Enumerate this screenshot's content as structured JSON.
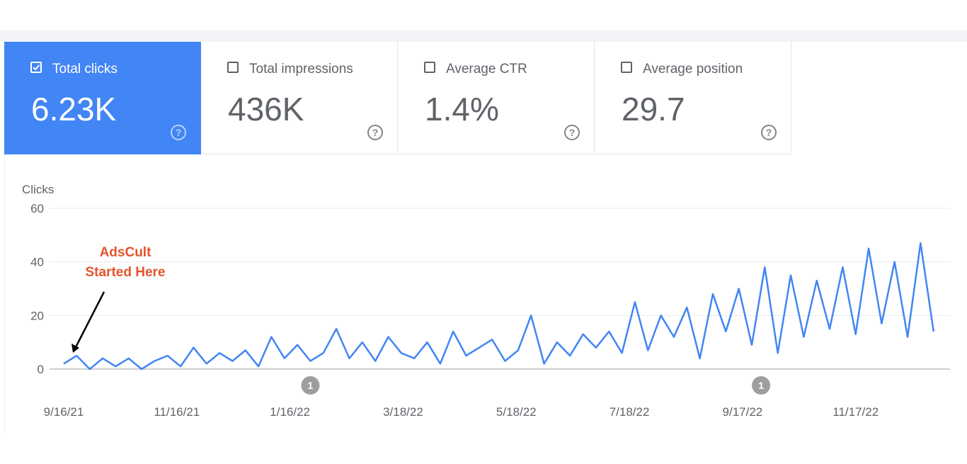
{
  "metrics": [
    {
      "label": "Total clicks",
      "value": "6.23K",
      "checked": true
    },
    {
      "label": "Total impressions",
      "value": "436K",
      "checked": false
    },
    {
      "label": "Average CTR",
      "value": "1.4%",
      "checked": false
    },
    {
      "label": "Average position",
      "value": "29.7",
      "checked": false
    }
  ],
  "help_glyph": "?",
  "colors": {
    "accent": "#4285f4",
    "annotation": "#e2552d",
    "marker": "#9e9e9e"
  },
  "annotation": {
    "line1": "AdsCult",
    "line2": "Started Here"
  },
  "chart_data": {
    "type": "line",
    "ylabel": "Clicks",
    "ylim": [
      0,
      60
    ],
    "yticks": [
      0,
      20,
      40,
      60
    ],
    "xlim": [
      "2021-09-16",
      "2022-12-31"
    ],
    "xticks": [
      {
        "date": "2021-09-16",
        "label": "9/16/21"
      },
      {
        "date": "2021-11-16",
        "label": "11/16/21"
      },
      {
        "date": "2022-01-16",
        "label": "1/16/22"
      },
      {
        "date": "2022-03-18",
        "label": "3/18/22"
      },
      {
        "date": "2022-05-18",
        "label": "5/18/22"
      },
      {
        "date": "2022-07-18",
        "label": "7/18/22"
      },
      {
        "date": "2022-09-17",
        "label": "9/17/22"
      },
      {
        "date": "2022-11-17",
        "label": "11/17/22"
      }
    ],
    "markers": [
      {
        "date": "2022-01-27",
        "label": "1"
      },
      {
        "date": "2022-09-27",
        "label": "1"
      }
    ],
    "grid": true,
    "series": [
      {
        "color": "#4285f4",
        "x": [
          "2021-09-16",
          "2021-09-23",
          "2021-09-30",
          "2021-10-07",
          "2021-10-14",
          "2021-10-21",
          "2021-10-28",
          "2021-11-04",
          "2021-11-11",
          "2021-11-18",
          "2021-11-25",
          "2021-12-02",
          "2021-12-09",
          "2021-12-16",
          "2021-12-23",
          "2021-12-30",
          "2022-01-06",
          "2022-01-13",
          "2022-01-20",
          "2022-01-27",
          "2022-02-03",
          "2022-02-10",
          "2022-02-17",
          "2022-02-24",
          "2022-03-03",
          "2022-03-10",
          "2022-03-17",
          "2022-03-24",
          "2022-03-31",
          "2022-04-07",
          "2022-04-14",
          "2022-04-21",
          "2022-04-28",
          "2022-05-05",
          "2022-05-12",
          "2022-05-19",
          "2022-05-26",
          "2022-06-02",
          "2022-06-09",
          "2022-06-16",
          "2022-06-23",
          "2022-06-30",
          "2022-07-07",
          "2022-07-14",
          "2022-07-21",
          "2022-07-28",
          "2022-08-04",
          "2022-08-11",
          "2022-08-18",
          "2022-08-25",
          "2022-09-01",
          "2022-09-08",
          "2022-09-15",
          "2022-09-22",
          "2022-09-29",
          "2022-10-06",
          "2022-10-13",
          "2022-10-20",
          "2022-10-27",
          "2022-11-03",
          "2022-11-10",
          "2022-11-17",
          "2022-11-24",
          "2022-12-01",
          "2022-12-08",
          "2022-12-15",
          "2022-12-22",
          "2022-12-29"
        ],
        "y": [
          2,
          5,
          0,
          4,
          1,
          4,
          0,
          3,
          5,
          1,
          8,
          2,
          6,
          3,
          7,
          1,
          12,
          4,
          9,
          3,
          6,
          15,
          4,
          10,
          3,
          12,
          6,
          4,
          10,
          2,
          14,
          5,
          8,
          11,
          3,
          7,
          20,
          2,
          10,
          5,
          13,
          8,
          14,
          6,
          25,
          7,
          20,
          12,
          23,
          4,
          28,
          14,
          30,
          9,
          38,
          6,
          35,
          12,
          33,
          15,
          38,
          13,
          45,
          17,
          40,
          12,
          47,
          14
        ]
      }
    ]
  }
}
